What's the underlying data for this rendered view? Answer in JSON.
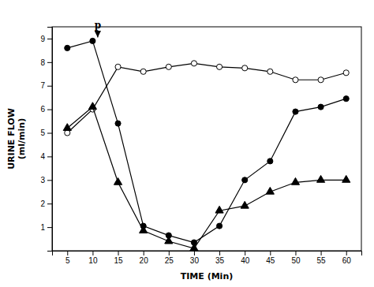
{
  "chart_data": {
    "type": "line",
    "x": [
      5,
      10,
      15,
      20,
      25,
      30,
      35,
      40,
      45,
      50,
      55,
      60
    ],
    "series": [
      {
        "color": "#000000",
        "marker": "open-circle",
        "values": [
          5.0,
          6.0,
          7.8,
          7.6,
          7.8,
          7.95,
          7.8,
          7.75,
          7.6,
          7.25,
          7.25,
          7.55
        ]
      },
      {
        "color": "#000000",
        "marker": "circle",
        "values": [
          8.6,
          8.9,
          5.4,
          1.05,
          0.65,
          0.35,
          1.05,
          3.0,
          3.8,
          5.9,
          6.1,
          6.45
        ]
      },
      {
        "color": "#000000",
        "marker": "triangle",
        "values": [
          5.2,
          6.1,
          2.9,
          0.85,
          0.4,
          0.1,
          1.7,
          1.9,
          2.5,
          2.9,
          3.0,
          3.0
        ]
      }
    ],
    "annotations": [
      {
        "text": "p",
        "x": 11,
        "y": 9.45,
        "arrow_y": [
          9.35,
          9.05
        ]
      }
    ],
    "x_label": "TIME (Min)",
    "y_label": "URINE FLOW\n(ml/min)",
    "xlim": [
      2,
      63
    ],
    "ylim": [
      0,
      9.5
    ],
    "xticks": [
      5,
      10,
      15,
      20,
      25,
      30,
      35,
      40,
      45,
      50,
      55,
      60
    ],
    "yticks": [
      1,
      2,
      3,
      4,
      5,
      6,
      7,
      8,
      9
    ],
    "grid": false
  }
}
